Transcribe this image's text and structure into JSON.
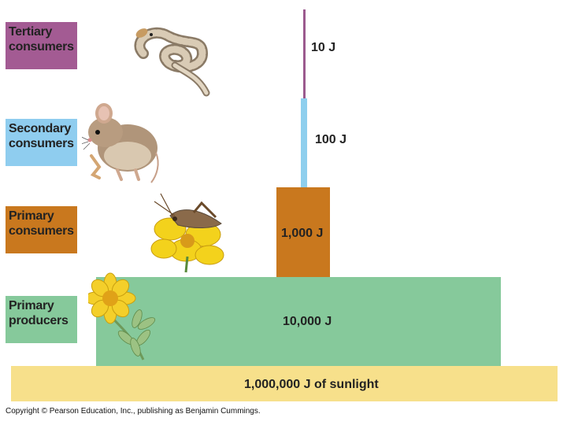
{
  "levels": [
    {
      "label_line1": "Tertiary",
      "label_line2": "consumers",
      "color": "#9b5a8e",
      "energy": "10 J",
      "organism": "snake-icon"
    },
    {
      "label_line1": "Secondary",
      "label_line2": "consumers",
      "color": "#8ecfee",
      "energy": "100 J",
      "organism": "mouse-icon"
    },
    {
      "label_line1": "Primary",
      "label_line2": "consumers",
      "color": "#c9781e",
      "energy": "1,000 J",
      "organism": "grasshopper-on-flower-icon"
    },
    {
      "label_line1": "Primary",
      "label_line2": "producers",
      "color": "#86c99b",
      "energy": "10,000 J",
      "organism": "flower-plant-icon"
    }
  ],
  "sunlight": {
    "label": "1,000,000 J of sunlight",
    "color": "#f6e08a"
  },
  "copyright": "Copyright © Pearson Education, Inc., publishing as Benjamin Cummings."
}
